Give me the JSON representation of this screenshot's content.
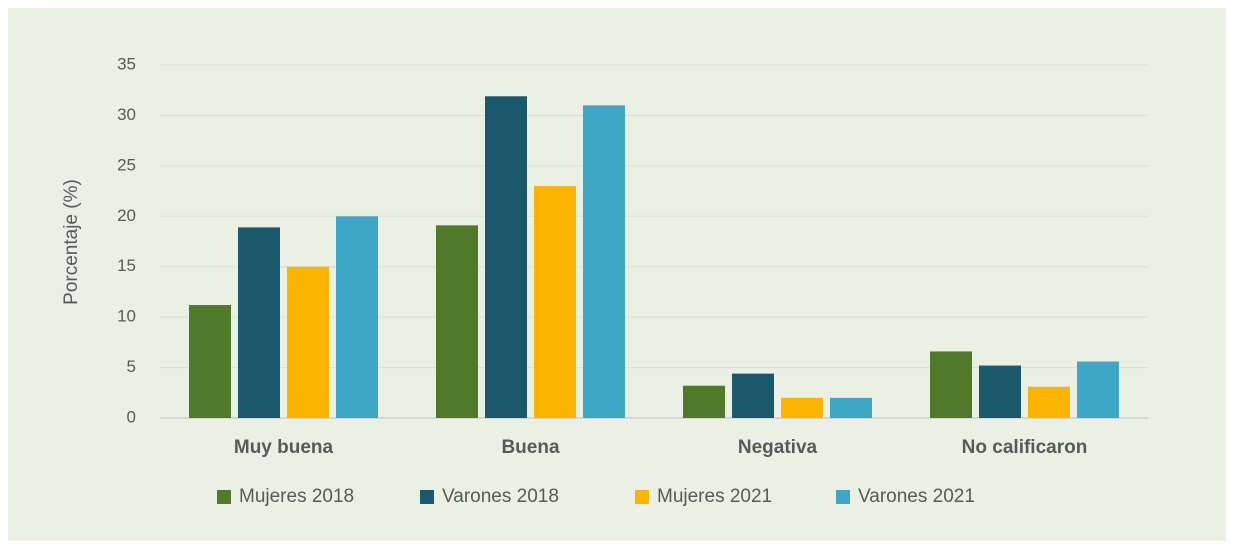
{
  "chart_data": {
    "type": "bar",
    "y_label": "Porcentaje (%)",
    "categories": [
      "Muy buena",
      "Buena",
      "Negativa",
      "No calificaron"
    ],
    "series": [
      {
        "name": "Mujeres 2018",
        "color": "#4e7a2a",
        "values": [
          11.2,
          19.1,
          3.2,
          6.6
        ]
      },
      {
        "name": "Varones 2018",
        "color": "#1a586b",
        "values": [
          18.9,
          31.9,
          4.4,
          5.2
        ]
      },
      {
        "name": "Mujeres 2021",
        "color": "#fbb400",
        "values": [
          15,
          23,
          2.0,
          3.1
        ]
      },
      {
        "name": "Varones 2021",
        "color": "#3fa7c6",
        "values": [
          20,
          31,
          2.0,
          5.6
        ]
      }
    ],
    "ylim": [
      0,
      35
    ],
    "yticks": [
      0,
      5,
      10,
      15,
      20,
      25,
      30,
      35
    ],
    "grid": true,
    "legend": "bottom"
  }
}
